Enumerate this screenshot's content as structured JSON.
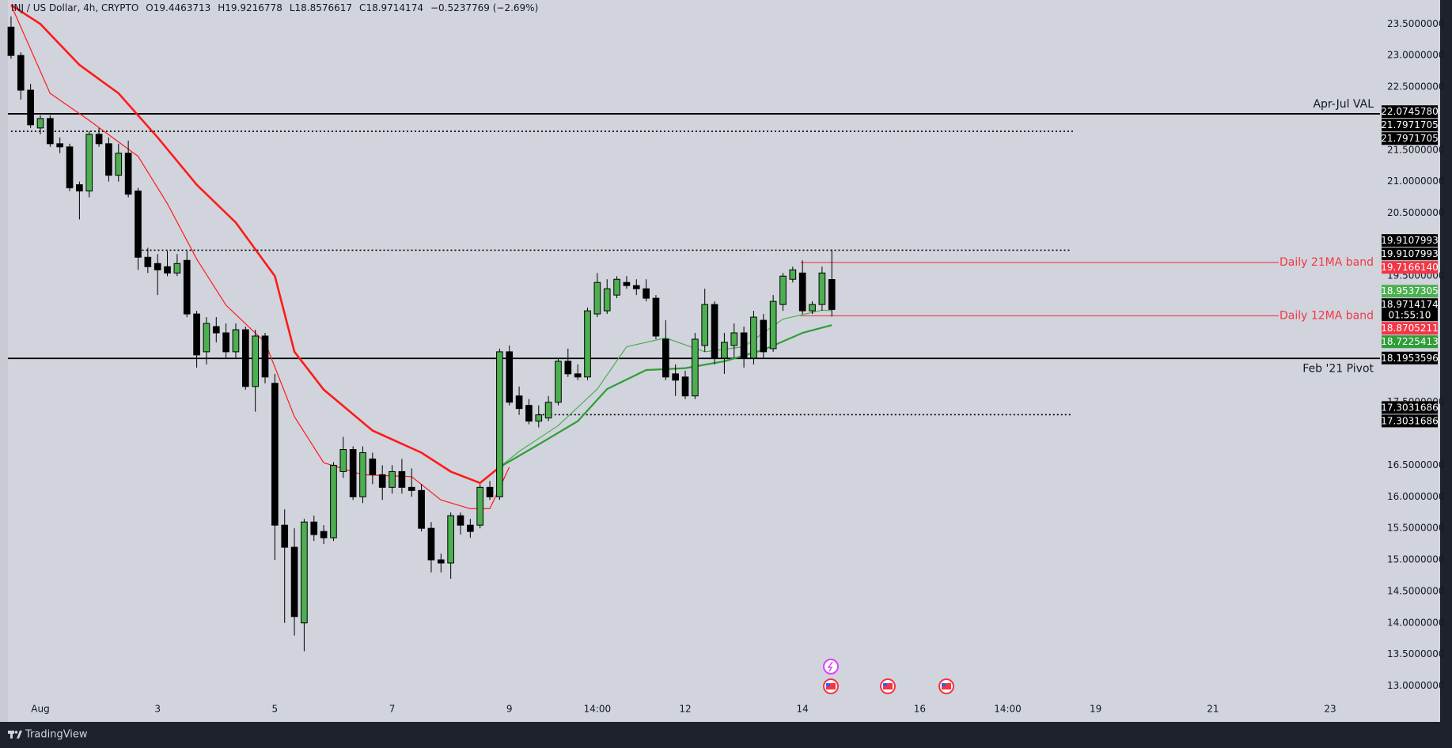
{
  "chart_data": {
    "type": "candlestick",
    "title": "INJ / US Dollar, 4h, CRYPTO",
    "ohlc_labels": [
      "O",
      "H",
      "L",
      "C"
    ],
    "change": "−0.5237769 (−2.69%)",
    "countdown": "01:55:10",
    "up_color": "#4caf50",
    "down_color": "#000000",
    "xlim": [
      -0.32,
      140.1
    ],
    "ylim": [
      12.63,
      23.88
    ],
    "grid": false,
    "yticks": [
      {
        "value": 23.5,
        "label": "23.5000000"
      },
      {
        "value": 23,
        "label": "23.0000000"
      },
      {
        "value": 22.5,
        "label": "22.5000000"
      },
      {
        "value": 21.5,
        "label": "21.5000000"
      },
      {
        "value": 21,
        "label": "21.0000000"
      },
      {
        "value": 20.5,
        "label": "20.5000000"
      },
      {
        "value": 19.5,
        "label": "19.5000000"
      },
      {
        "value": 17.5,
        "label": "17.5000000"
      },
      {
        "value": 16.5,
        "label": "16.5000000"
      },
      {
        "value": 16,
        "label": "16.0000000"
      },
      {
        "value": 15.5,
        "label": "15.5000000"
      },
      {
        "value": 15,
        "label": "15.0000000"
      },
      {
        "value": 14.5,
        "label": "14.5000000"
      },
      {
        "value": 14,
        "label": "14.0000000"
      },
      {
        "value": 13.5,
        "label": "13.5000000"
      },
      {
        "value": 13,
        "label": "13.0000000"
      }
    ],
    "xticks": [
      {
        "value": 3,
        "label": "Aug"
      },
      {
        "value": 15,
        "label": "3"
      },
      {
        "value": 27,
        "label": "5"
      },
      {
        "value": 39,
        "label": "7"
      },
      {
        "value": 51,
        "label": "9"
      },
      {
        "value": 60,
        "label": "14:00"
      },
      {
        "value": 69,
        "label": "12"
      },
      {
        "value": 81,
        "label": "14"
      },
      {
        "value": 93,
        "label": "16"
      },
      {
        "value": 102,
        "label": "14:00"
      },
      {
        "value": 111,
        "label": "19"
      },
      {
        "value": 123,
        "label": "21"
      },
      {
        "value": 135,
        "label": "23"
      }
    ],
    "ohlc": [
      [
        23.45,
        23.62,
        22.95,
        23.0
      ],
      [
        23.0,
        23.05,
        22.3,
        22.45
      ],
      [
        22.45,
        22.55,
        21.85,
        21.9
      ],
      [
        21.85,
        22.05,
        21.75,
        22.0
      ],
      [
        22.0,
        22.05,
        21.55,
        21.6
      ],
      [
        21.6,
        21.7,
        21.45,
        21.55
      ],
      [
        21.55,
        21.6,
        20.85,
        20.9
      ],
      [
        20.95,
        21.0,
        20.4,
        20.85
      ],
      [
        20.85,
        21.8,
        20.75,
        21.75
      ],
      [
        21.75,
        21.85,
        21.55,
        21.6
      ],
      [
        21.6,
        21.7,
        21.0,
        21.1
      ],
      [
        21.1,
        21.6,
        21.0,
        21.45
      ],
      [
        21.45,
        21.65,
        20.75,
        20.8
      ],
      [
        20.85,
        20.9,
        19.6,
        19.8
      ],
      [
        19.8,
        19.95,
        19.55,
        19.65
      ],
      [
        19.7,
        19.85,
        19.2,
        19.6
      ],
      [
        19.65,
        19.9,
        19.5,
        19.55
      ],
      [
        19.55,
        19.85,
        19.5,
        19.7
      ],
      [
        19.75,
        19.9,
        18.85,
        18.9
      ],
      [
        18.9,
        18.95,
        18.05,
        18.25
      ],
      [
        18.3,
        18.85,
        18.1,
        18.75
      ],
      [
        18.7,
        18.85,
        18.45,
        18.6
      ],
      [
        18.6,
        18.75,
        18.2,
        18.3
      ],
      [
        18.3,
        18.75,
        18.2,
        18.65
      ],
      [
        18.65,
        18.7,
        17.7,
        17.75
      ],
      [
        17.75,
        18.65,
        17.35,
        18.55
      ],
      [
        18.55,
        18.6,
        17.8,
        17.9
      ],
      [
        17.8,
        17.95,
        15.0,
        15.55
      ],
      [
        15.55,
        15.8,
        14.0,
        15.2
      ],
      [
        15.2,
        15.5,
        13.8,
        14.1
      ],
      [
        14.0,
        15.65,
        13.55,
        15.6
      ],
      [
        15.6,
        15.7,
        15.3,
        15.4
      ],
      [
        15.45,
        15.55,
        15.25,
        15.35
      ],
      [
        15.35,
        16.55,
        15.3,
        16.5
      ],
      [
        16.4,
        16.95,
        16.3,
        16.75
      ],
      [
        16.75,
        16.8,
        15.95,
        16.0
      ],
      [
        16.0,
        16.8,
        15.9,
        16.7
      ],
      [
        16.6,
        16.7,
        16.2,
        16.35
      ],
      [
        16.35,
        16.5,
        15.95,
        16.15
      ],
      [
        16.15,
        16.5,
        16.05,
        16.4
      ],
      [
        16.4,
        16.6,
        16.05,
        16.15
      ],
      [
        16.15,
        16.45,
        16.0,
        16.1
      ],
      [
        16.1,
        16.2,
        15.45,
        15.5
      ],
      [
        15.5,
        15.6,
        14.8,
        15.0
      ],
      [
        15.0,
        15.1,
        14.8,
        14.95
      ],
      [
        14.95,
        15.75,
        14.7,
        15.7
      ],
      [
        15.7,
        15.75,
        15.4,
        15.55
      ],
      [
        15.55,
        15.65,
        15.35,
        15.45
      ],
      [
        15.55,
        16.2,
        15.5,
        16.15
      ],
      [
        16.15,
        16.25,
        15.95,
        16.0
      ],
      [
        16.0,
        18.35,
        15.95,
        18.3
      ],
      [
        18.3,
        18.4,
        17.45,
        17.5
      ],
      [
        17.6,
        17.75,
        17.3,
        17.4
      ],
      [
        17.45,
        17.55,
        17.15,
        17.2
      ],
      [
        17.2,
        17.45,
        17.1,
        17.3
      ],
      [
        17.25,
        17.6,
        17.2,
        17.5
      ],
      [
        17.5,
        18.2,
        17.45,
        18.15
      ],
      [
        18.15,
        18.35,
        17.9,
        17.95
      ],
      [
        17.95,
        18.1,
        17.85,
        17.9
      ],
      [
        17.9,
        19.0,
        17.85,
        18.95
      ],
      [
        18.9,
        19.55,
        18.85,
        19.4
      ],
      [
        18.95,
        19.45,
        18.9,
        19.3
      ],
      [
        19.2,
        19.5,
        19.15,
        19.45
      ],
      [
        19.4,
        19.5,
        19.3,
        19.35
      ],
      [
        19.35,
        19.45,
        19.2,
        19.3
      ],
      [
        19.3,
        19.45,
        19.1,
        19.15
      ],
      [
        19.15,
        19.2,
        18.5,
        18.55
      ],
      [
        18.5,
        18.8,
        17.85,
        17.9
      ],
      [
        17.95,
        18.1,
        17.6,
        17.85
      ],
      [
        17.9,
        18.0,
        17.55,
        17.6
      ],
      [
        17.6,
        18.6,
        17.55,
        18.5
      ],
      [
        18.4,
        19.3,
        18.3,
        19.05
      ],
      [
        19.05,
        19.1,
        18.1,
        18.2
      ],
      [
        18.2,
        18.6,
        17.95,
        18.45
      ],
      [
        18.4,
        18.75,
        18.2,
        18.6
      ],
      [
        18.6,
        18.7,
        18.05,
        18.2
      ],
      [
        18.2,
        18.95,
        18.1,
        18.85
      ],
      [
        18.8,
        18.9,
        18.2,
        18.3
      ],
      [
        18.35,
        19.2,
        18.3,
        19.1
      ],
      [
        19.05,
        19.55,
        18.95,
        19.5
      ],
      [
        19.45,
        19.65,
        19.4,
        19.6
      ],
      [
        19.55,
        19.75,
        18.9,
        18.95
      ],
      [
        18.95,
        19.1,
        18.9,
        19.05
      ],
      [
        19.05,
        19.65,
        18.95,
        19.55
      ],
      [
        19.4463713,
        19.9216778,
        18.8576617,
        18.9714174
      ]
    ],
    "moving_averages": [
      {
        "color": "#ff1a1a",
        "width": 2.6,
        "x": [
          0,
          3,
          7,
          11,
          15,
          19,
          23,
          27,
          29,
          32,
          37,
          42,
          45,
          48,
          50
        ],
        "values": [
          23.8,
          23.5,
          22.85,
          22.4,
          21.7,
          20.95,
          20.35,
          19.5,
          18.3,
          17.7,
          17.05,
          16.7,
          16.4,
          16.22,
          16.47
        ]
      },
      {
        "color": "#ff1a1a",
        "width": 1.2,
        "x": [
          0,
          4,
          8,
          13,
          16,
          19,
          22,
          26,
          29,
          32,
          36,
          41,
          44,
          47,
          49,
          51
        ],
        "values": [
          23.8,
          22.4,
          21.97,
          21.4,
          20.65,
          19.77,
          19.04,
          18.45,
          17.27,
          16.54,
          16.35,
          16.32,
          15.95,
          15.81,
          15.81,
          16.47
        ]
      },
      {
        "color": "#4caf50",
        "width": 1.2,
        "x": [
          50,
          52,
          56,
          60,
          63,
          67,
          71,
          75,
          79,
          83,
          84
        ],
        "values": [
          16.47,
          16.72,
          17.13,
          17.71,
          18.38,
          18.52,
          18.3,
          18.38,
          18.82,
          18.96,
          18.9537305
        ],
        "last_label": "18.9537305"
      },
      {
        "color": "#2e9e37",
        "width": 2.2,
        "x": [
          50,
          54,
          58,
          61,
          65,
          69,
          73,
          77,
          81,
          84
        ],
        "values": [
          16.47,
          16.83,
          17.2,
          17.71,
          18.01,
          18.04,
          18.15,
          18.33,
          18.6,
          18.7225413
        ],
        "last_label": "18.7225413"
      }
    ],
    "levels": [
      {
        "text": "Apr-Jul VAL",
        "value": 22.074578,
        "label": "22.0745780",
        "color": "#000000",
        "style": "solid",
        "text_side": "above",
        "axis_labels": 1
      },
      {
        "text": "Feb '21 Pivot",
        "value": 18.1953596,
        "label": "18.1953596",
        "color": "#000000",
        "style": "solid",
        "text_side": "below",
        "axis_labels": 1
      },
      {
        "text": "Daily 21MA band",
        "value": 19.716614,
        "label": "19.7166140",
        "color": "#f23645",
        "style": "solid",
        "text_side": "on",
        "x_start": 80.8,
        "axis_labels": 1
      },
      {
        "text": "Daily 12MA band",
        "value": 18.8705211,
        "label": "18.8705211",
        "color": "#f23645",
        "style": "solid",
        "text_side": "on",
        "x_start": 80.8,
        "axis_labels": 1
      },
      {
        "value": 21.7971705,
        "label": "21.7971705",
        "color": "#000000",
        "style": "dotted",
        "x_start": 0,
        "x_end": 108.8,
        "axis_labels": 2
      },
      {
        "value": 19.9107993,
        "label": "19.9107993",
        "color": "#000000",
        "style": "dotted",
        "x_start": 13,
        "x_end": 108.5,
        "axis_labels": 2
      },
      {
        "value": 17.3031686,
        "label": "17.3031686",
        "color": "#000000",
        "style": "dotted",
        "x_start": 54,
        "x_end": 108.5,
        "axis_labels": 2
      }
    ]
  },
  "footer": {
    "brand": "TradingView"
  }
}
